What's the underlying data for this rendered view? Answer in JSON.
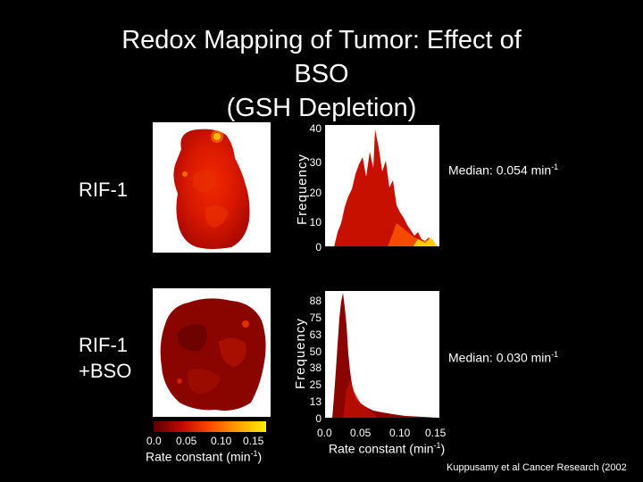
{
  "title_lines": [
    "Redox Mapping of Tumor: Effect of",
    "BSO",
    "(GSH Depletion)"
  ],
  "rows": [
    {
      "label_lines": [
        "RIF-1"
      ],
      "y_axis_label": "Frequency",
      "y_ticks": [
        "40",
        "30",
        "20",
        "10",
        "0"
      ],
      "median_prefix": "Median: 0.054 min",
      "median_sup": "-1"
    },
    {
      "label_lines": [
        "RIF-1",
        "+BSO"
      ],
      "y_axis_label": "Frequency",
      "y_ticks": [
        "88",
        "75",
        "63",
        "50",
        "38",
        "25",
        "13",
        "0"
      ],
      "median_prefix": "Median: 0.030 min",
      "median_sup": "-1"
    }
  ],
  "colorbar": {
    "ticks": [
      "0.0",
      "0.05",
      "0.10",
      "0.15"
    ],
    "label_prefix": "Rate constant (min",
    "label_sup": "-1",
    "label_suffix": ")"
  },
  "histogram_x_axis": {
    "ticks": [
      "0.0",
      "0.05",
      "0.10",
      "0.15"
    ],
    "label_prefix": "Rate constant (min",
    "label_sup": "-1",
    "label_suffix": ")"
  },
  "citation": "Kuppusamy et al Cancer Research (2002",
  "colors": {
    "background": "#000000",
    "map_dark_red": "#7a0000",
    "map_red": "#e01a00",
    "map_orange": "#ff7a00",
    "map_yellow": "#ffee00"
  }
}
